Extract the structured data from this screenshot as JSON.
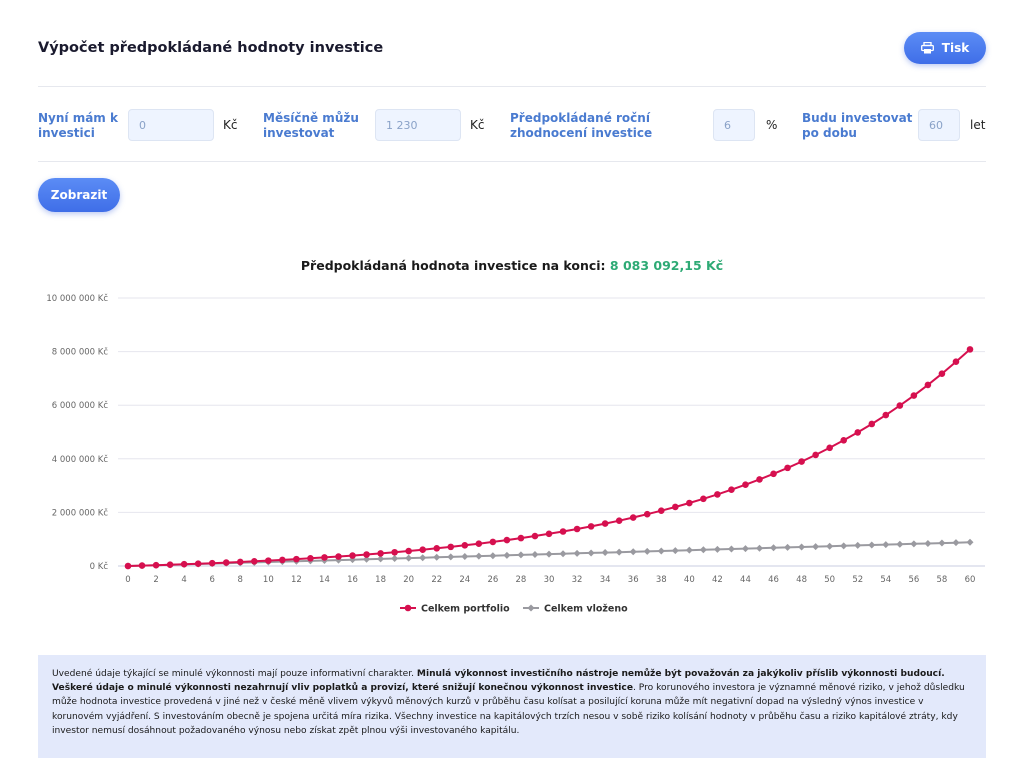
{
  "header": {
    "title": "Výpočet předpokládané hodnoty investice",
    "print_label": "Tisk"
  },
  "form": {
    "initial": {
      "label_1": "Nyní mám k",
      "label_2": "investici",
      "value": "0",
      "unit": "Kč"
    },
    "monthly": {
      "label_1": "Měsíčně můžu",
      "label_2": "investovat",
      "value": "1 230",
      "unit": "Kč"
    },
    "rate": {
      "label_1": "Předpokládané roční",
      "label_2": "zhodnocení investice",
      "value": "6",
      "unit": "%"
    },
    "years": {
      "label_1": "Budu investovat",
      "label_2": "po dobu",
      "value": "60",
      "unit": "let"
    },
    "show_label": "Zobrazit"
  },
  "result": {
    "label": "Předpokládaná hodnota investice na konci:",
    "value": "8 083 092,15 Kč"
  },
  "colors": {
    "accent": "#4a7bd0",
    "result_value": "#2eaa75",
    "portfolio": "#d6104f",
    "invested": "#9a9aa0",
    "disclaimer_bg": "#e3e9fb"
  },
  "chart_data": {
    "type": "line",
    "x_ticks": [
      0,
      2,
      4,
      6,
      8,
      10,
      12,
      14,
      16,
      18,
      20,
      22,
      24,
      26,
      28,
      30,
      32,
      34,
      36,
      38,
      40,
      42,
      44,
      46,
      48,
      50,
      52,
      54,
      56,
      58,
      60
    ],
    "y_ticks": [
      "0 Kč",
      "2 000 000 Kč",
      "4 000 000 Kč",
      "6 000 000 Kč",
      "8 000 000 Kč",
      "10 000 000 Kč"
    ],
    "ylim": [
      0,
      10000000
    ],
    "xlim": [
      0,
      60
    ],
    "grid": true,
    "legend_position": "bottom",
    "series": [
      {
        "name": "Celkem portfolio",
        "x": [
          0,
          1,
          2,
          3,
          4,
          5,
          6,
          7,
          8,
          9,
          10,
          11,
          12,
          13,
          14,
          15,
          16,
          17,
          18,
          19,
          20,
          21,
          22,
          23,
          24,
          25,
          26,
          27,
          28,
          29,
          30,
          31,
          32,
          33,
          34,
          35,
          36,
          37,
          38,
          39,
          40,
          41,
          42,
          43,
          44,
          45,
          46,
          47,
          48,
          49,
          50,
          51,
          52,
          53,
          54,
          55,
          56,
          57,
          58,
          59,
          60
        ],
        "values": [
          0,
          15186,
          31282,
          48345,
          66431,
          85602,
          105924,
          127465,
          150298,
          174502,
          200157,
          227352,
          256179,
          286735,
          319124,
          353456,
          389849,
          428425,
          469315,
          512660,
          558604,
          607306,
          658929,
          713649,
          771652,
          833135,
          898307,
          967389,
          1040616,
          1118236,
          1200514,
          1287729,
          1380177,
          1478172,
          1582047,
          1692155,
          1808868,
          1932585,
          2063725,
          2202733,
          2350081,
          2506270,
          2671830,
          2847324,
          3033347,
          3230532,
          3439549,
          3661106,
          3895957,
          4144898,
          4408776,
          4688487,
          4984980,
          5299263,
          5632403,
          5985532,
          6359849,
          6756624,
          7177205,
          7623021,
          8083092
        ]
      },
      {
        "name": "Celkem vloženo",
        "x": [
          0,
          1,
          2,
          3,
          4,
          5,
          6,
          7,
          8,
          9,
          10,
          11,
          12,
          13,
          14,
          15,
          16,
          17,
          18,
          19,
          20,
          21,
          22,
          23,
          24,
          25,
          26,
          27,
          28,
          29,
          30,
          31,
          32,
          33,
          34,
          35,
          36,
          37,
          38,
          39,
          40,
          41,
          42,
          43,
          44,
          45,
          46,
          47,
          48,
          49,
          50,
          51,
          52,
          53,
          54,
          55,
          56,
          57,
          58,
          59,
          60
        ],
        "values": [
          0,
          14760,
          29520,
          44280,
          59040,
          73800,
          88560,
          103320,
          118080,
          132840,
          147600,
          162360,
          177120,
          191880,
          206640,
          221400,
          236160,
          250920,
          265680,
          280440,
          295200,
          309960,
          324720,
          339480,
          354240,
          369000,
          383760,
          398520,
          413280,
          428040,
          442800,
          457560,
          472320,
          487080,
          501840,
          516600,
          531360,
          546120,
          560880,
          575640,
          590400,
          605160,
          619920,
          634680,
          649440,
          664200,
          678960,
          693720,
          708480,
          723240,
          738000,
          752760,
          767520,
          782280,
          797040,
          811800,
          826560,
          841320,
          856080,
          870840,
          885600
        ]
      }
    ]
  },
  "disclaimer": {
    "p1": "Uvedené údaje týkající se minulé výkonnosti mají pouze informativní charakter. ",
    "b1": "Minulá výkonnost investičního nástroje nemůže být považován za jakýkoliv příslib výkonnosti budoucí. Veškeré údaje o minulé výkonnosti nezahrnují vliv poplatků a provizí, které snižují konečnou výkonnost investice",
    "p2": ". Pro korunového investora je významné měnové riziko, v jehož důsledku může hodnota investice provedená v jiné než v české měně vlivem výkyvů měnových kurzů v průběhu času kolísat a posilující koruna může mít negativní dopad na výsledný výnos investice v korunovém vyjádření. S investováním obecně je spojena určitá míra rizika. Všechny investice na kapitálových trzích nesou v sobě riziko kolísání hodnoty v průběhu času a riziko kapitálové ztráty, kdy investor nemusí dosáhnout požadovaného výnosu nebo získat zpět plnou výši investovaného kapitálu."
  }
}
